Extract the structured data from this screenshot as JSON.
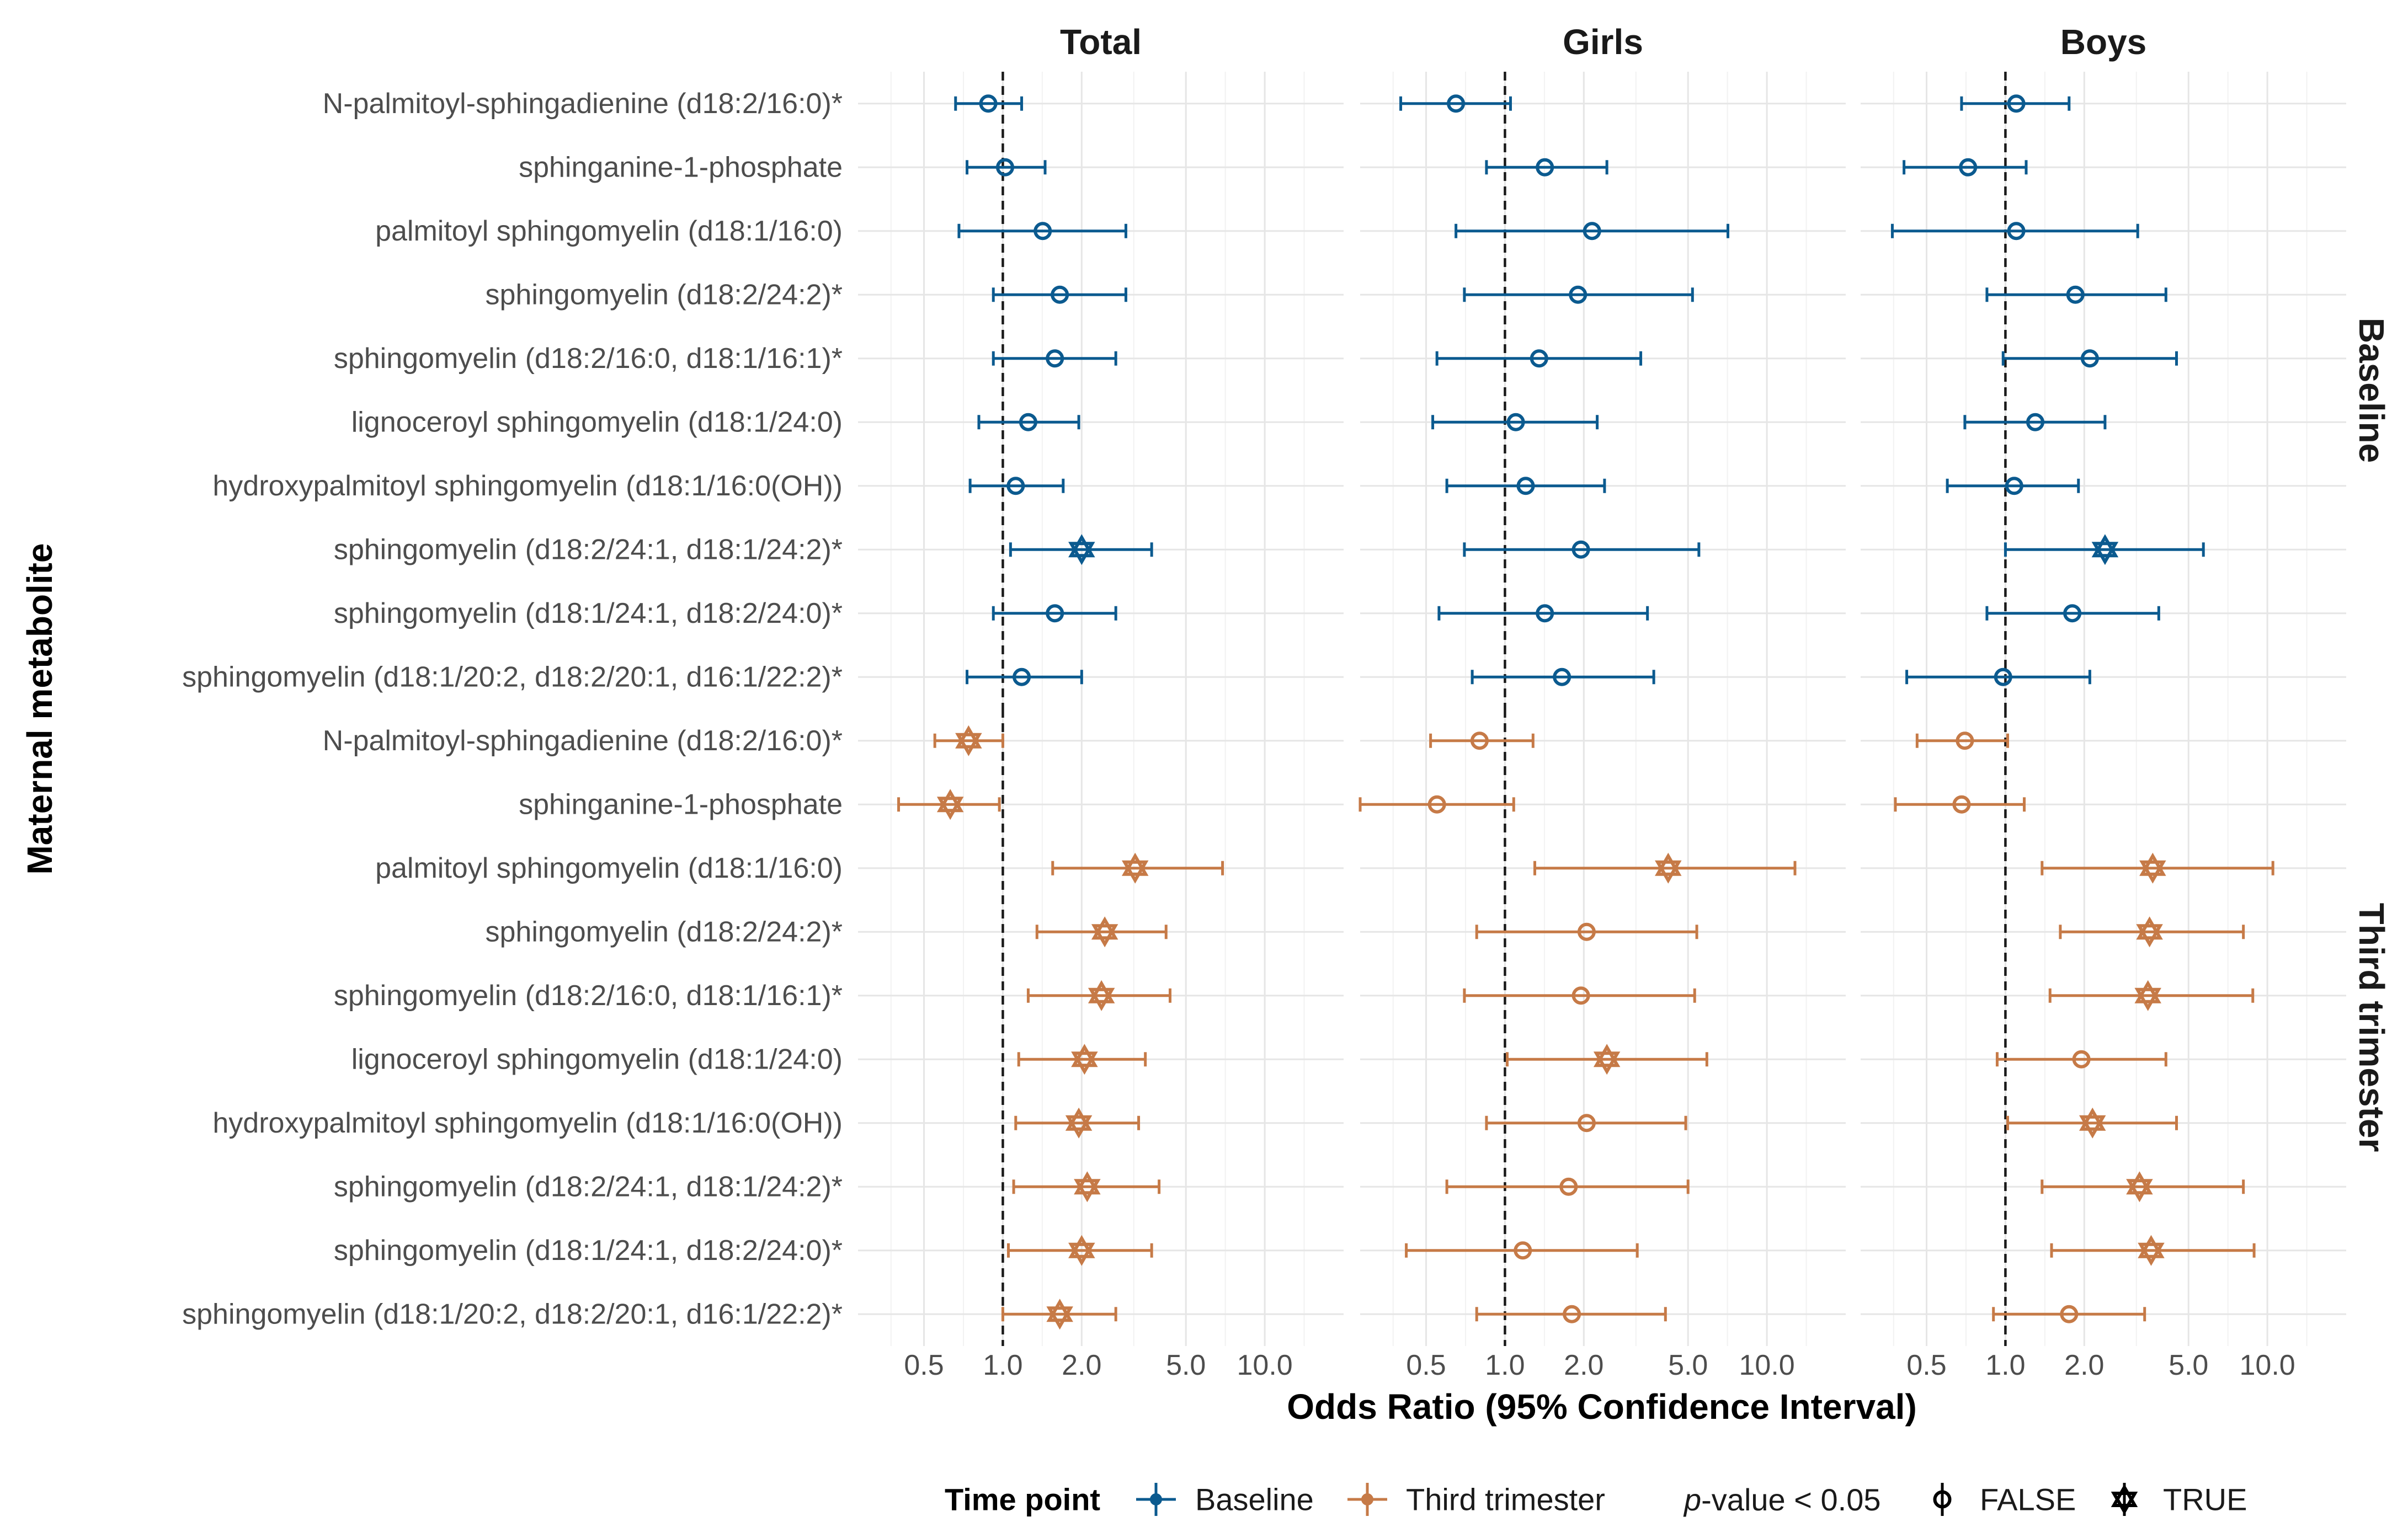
{
  "chart_data": {
    "type": "forest",
    "xlabel": "Odds Ratio (95% Confidence Interval)",
    "ylabel": "Maternal metabolite",
    "x_scale": "log",
    "xlim": [
      0.28,
      20
    ],
    "xticks": [
      0.5,
      1.0,
      2.0,
      5.0,
      10.0
    ],
    "xtick_labels": [
      "0.5",
      "1.0",
      "2.0",
      "5.0",
      "10.0"
    ],
    "reference_line": 1.0,
    "columns": [
      "Total",
      "Girls",
      "Boys"
    ],
    "rows": [
      "Baseline",
      "Third trimester"
    ],
    "metabolites": [
      "N-palmitoyl-sphingadienine (d18:2/16:0)*",
      "sphinganine-1-phosphate",
      "palmitoyl sphingomyelin (d18:1/16:0)",
      "sphingomyelin (d18:2/24:2)*",
      "sphingomyelin (d18:2/16:0, d18:1/16:1)*",
      "lignoceroyl sphingomyelin (d18:1/24:0)",
      "hydroxypalmitoyl sphingomyelin (d18:1/16:0(OH))",
      "sphingomyelin (d18:2/24:1, d18:1/24:2)*",
      "sphingomyelin (d18:1/24:1, d18:2/24:0)*",
      "sphingomyelin (d18:1/20:2, d18:2/20:1, d16:1/22:2)*"
    ],
    "colors": {
      "Baseline": "#0b5a8f",
      "Third trimester": "#c67a47"
    },
    "series": [
      {
        "name": "Baseline",
        "column": "Total",
        "points": [
          {
            "or": 0.88,
            "lo": 0.66,
            "hi": 1.18,
            "sig": false
          },
          {
            "or": 1.02,
            "lo": 0.73,
            "hi": 1.45,
            "sig": false
          },
          {
            "or": 1.42,
            "lo": 0.68,
            "hi": 2.95,
            "sig": false
          },
          {
            "or": 1.65,
            "lo": 0.92,
            "hi": 2.95,
            "sig": false
          },
          {
            "or": 1.58,
            "lo": 0.92,
            "hi": 2.7,
            "sig": false
          },
          {
            "or": 1.25,
            "lo": 0.81,
            "hi": 1.95,
            "sig": false
          },
          {
            "or": 1.12,
            "lo": 0.75,
            "hi": 1.7,
            "sig": false
          },
          {
            "or": 2.0,
            "lo": 1.07,
            "hi": 3.7,
            "sig": true
          },
          {
            "or": 1.58,
            "lo": 0.92,
            "hi": 2.7,
            "sig": false
          },
          {
            "or": 1.18,
            "lo": 0.73,
            "hi": 2.0,
            "sig": false
          }
        ]
      },
      {
        "name": "Baseline",
        "column": "Girls",
        "points": [
          {
            "or": 0.65,
            "lo": 0.4,
            "hi": 1.05,
            "sig": false
          },
          {
            "or": 1.42,
            "lo": 0.85,
            "hi": 2.45,
            "sig": false
          },
          {
            "or": 2.15,
            "lo": 0.65,
            "hi": 7.1,
            "sig": false
          },
          {
            "or": 1.9,
            "lo": 0.7,
            "hi": 5.2,
            "sig": false
          },
          {
            "or": 1.35,
            "lo": 0.55,
            "hi": 3.3,
            "sig": false
          },
          {
            "or": 1.1,
            "lo": 0.53,
            "hi": 2.25,
            "sig": false
          },
          {
            "or": 1.2,
            "lo": 0.6,
            "hi": 2.4,
            "sig": false
          },
          {
            "or": 1.95,
            "lo": 0.7,
            "hi": 5.5,
            "sig": false
          },
          {
            "or": 1.42,
            "lo": 0.56,
            "hi": 3.5,
            "sig": false
          },
          {
            "or": 1.65,
            "lo": 0.75,
            "hi": 3.7,
            "sig": false
          }
        ]
      },
      {
        "name": "Baseline",
        "column": "Boys",
        "points": [
          {
            "or": 1.1,
            "lo": 0.68,
            "hi": 1.75,
            "sig": false
          },
          {
            "or": 0.72,
            "lo": 0.41,
            "hi": 1.2,
            "sig": false
          },
          {
            "or": 1.1,
            "lo": 0.37,
            "hi": 3.2,
            "sig": false
          },
          {
            "or": 1.85,
            "lo": 0.85,
            "hi": 4.1,
            "sig": false
          },
          {
            "or": 2.1,
            "lo": 0.98,
            "hi": 4.5,
            "sig": false
          },
          {
            "or": 1.3,
            "lo": 0.7,
            "hi": 2.4,
            "sig": false
          },
          {
            "or": 1.08,
            "lo": 0.6,
            "hi": 1.9,
            "sig": false
          },
          {
            "or": 2.4,
            "lo": 1.0,
            "hi": 5.7,
            "sig": true
          },
          {
            "or": 1.8,
            "lo": 0.85,
            "hi": 3.85,
            "sig": false
          },
          {
            "or": 0.98,
            "lo": 0.42,
            "hi": 2.1,
            "sig": false
          }
        ]
      },
      {
        "name": "Third trimester",
        "column": "Total",
        "points": [
          {
            "or": 0.74,
            "lo": 0.55,
            "hi": 1.0,
            "sig": true
          },
          {
            "or": 0.63,
            "lo": 0.4,
            "hi": 0.97,
            "sig": true
          },
          {
            "or": 3.2,
            "lo": 1.55,
            "hi": 6.9,
            "sig": true
          },
          {
            "or": 2.45,
            "lo": 1.35,
            "hi": 4.2,
            "sig": true
          },
          {
            "or": 2.38,
            "lo": 1.25,
            "hi": 4.35,
            "sig": true
          },
          {
            "or": 2.05,
            "lo": 1.15,
            "hi": 3.5,
            "sig": true
          },
          {
            "or": 1.95,
            "lo": 1.12,
            "hi": 3.3,
            "sig": true
          },
          {
            "or": 2.1,
            "lo": 1.1,
            "hi": 3.95,
            "sig": true
          },
          {
            "or": 2.0,
            "lo": 1.05,
            "hi": 3.7,
            "sig": true
          },
          {
            "or": 1.65,
            "lo": 1.0,
            "hi": 2.7,
            "sig": true
          }
        ]
      },
      {
        "name": "Third trimester",
        "column": "Girls",
        "points": [
          {
            "or": 0.8,
            "lo": 0.52,
            "hi": 1.28,
            "sig": false
          },
          {
            "or": 0.55,
            "lo": 0.28,
            "hi": 1.08,
            "sig": false
          },
          {
            "or": 4.2,
            "lo": 1.3,
            "hi": 12.8,
            "sig": true
          },
          {
            "or": 2.05,
            "lo": 0.78,
            "hi": 5.4,
            "sig": false
          },
          {
            "or": 1.95,
            "lo": 0.7,
            "hi": 5.3,
            "sig": false
          },
          {
            "or": 2.45,
            "lo": 1.02,
            "hi": 5.9,
            "sig": true
          },
          {
            "or": 2.05,
            "lo": 0.85,
            "hi": 4.9,
            "sig": false
          },
          {
            "or": 1.75,
            "lo": 0.6,
            "hi": 5.0,
            "sig": false
          },
          {
            "or": 1.17,
            "lo": 0.42,
            "hi": 3.2,
            "sig": false
          },
          {
            "or": 1.8,
            "lo": 0.78,
            "hi": 4.1,
            "sig": false
          }
        ]
      },
      {
        "name": "Third trimester",
        "column": "Boys",
        "points": [
          {
            "or": 0.7,
            "lo": 0.46,
            "hi": 1.02,
            "sig": false
          },
          {
            "or": 0.68,
            "lo": 0.38,
            "hi": 1.18,
            "sig": false
          },
          {
            "or": 3.65,
            "lo": 1.38,
            "hi": 10.5,
            "sig": true
          },
          {
            "or": 3.55,
            "lo": 1.62,
            "hi": 8.1,
            "sig": true
          },
          {
            "or": 3.5,
            "lo": 1.48,
            "hi": 8.8,
            "sig": true
          },
          {
            "or": 1.95,
            "lo": 0.93,
            "hi": 4.1,
            "sig": false
          },
          {
            "or": 2.15,
            "lo": 1.02,
            "hi": 4.5,
            "sig": true
          },
          {
            "or": 3.25,
            "lo": 1.38,
            "hi": 8.1,
            "sig": true
          },
          {
            "or": 3.6,
            "lo": 1.5,
            "hi": 8.9,
            "sig": true
          },
          {
            "or": 1.75,
            "lo": 0.9,
            "hi": 3.4,
            "sig": false
          }
        ]
      }
    ],
    "legend": {
      "position": "bottom",
      "time_point_title": "Time point",
      "time_point_items": [
        "Baseline",
        "Third trimester"
      ],
      "pvalue_title_italic": "p",
      "pvalue_title_rest": "-value < 0.05",
      "pvalue_items": [
        "FALSE",
        "TRUE"
      ]
    }
  }
}
